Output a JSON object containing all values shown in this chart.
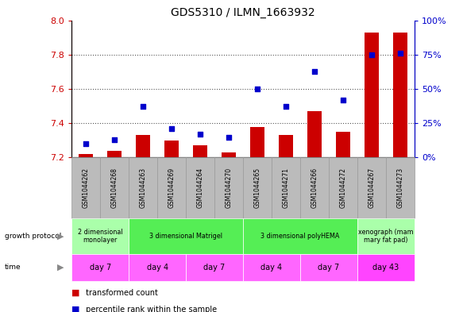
{
  "title": "GDS5310 / ILMN_1663932",
  "samples": [
    "GSM1044262",
    "GSM1044268",
    "GSM1044263",
    "GSM1044269",
    "GSM1044264",
    "GSM1044270",
    "GSM1044265",
    "GSM1044271",
    "GSM1044266",
    "GSM1044272",
    "GSM1044267",
    "GSM1044273"
  ],
  "transformed_counts": [
    7.22,
    7.24,
    7.33,
    7.3,
    7.27,
    7.23,
    7.38,
    7.33,
    7.47,
    7.35,
    7.93,
    7.93
  ],
  "percentile_ranks": [
    10,
    13,
    37,
    21,
    17,
    15,
    50,
    37,
    63,
    42,
    75,
    76
  ],
  "ylim_left": [
    7.2,
    8.0
  ],
  "ylim_right": [
    0,
    100
  ],
  "yticks_left": [
    7.2,
    7.4,
    7.6,
    7.8,
    8.0
  ],
  "yticks_right": [
    0,
    25,
    50,
    75,
    100
  ],
  "bar_color": "#cc0000",
  "dot_color": "#0000cc",
  "bar_bottom": 7.2,
  "growth_protocol_groups": [
    {
      "label": "2 dimensional\nmonolayer",
      "start": 0,
      "end": 2,
      "color": "#aaffaa"
    },
    {
      "label": "3 dimensional Matrigel",
      "start": 2,
      "end": 6,
      "color": "#55ee55"
    },
    {
      "label": "3 dimensional polyHEMA",
      "start": 6,
      "end": 10,
      "color": "#55ee55"
    },
    {
      "label": "xenograph (mam\nmary fat pad)",
      "start": 10,
      "end": 12,
      "color": "#aaffaa"
    }
  ],
  "time_groups": [
    {
      "label": "day 7",
      "start": 0,
      "end": 2,
      "color": "#ff66ff"
    },
    {
      "label": "day 4",
      "start": 2,
      "end": 4,
      "color": "#ff66ff"
    },
    {
      "label": "day 7",
      "start": 4,
      "end": 6,
      "color": "#ff66ff"
    },
    {
      "label": "day 4",
      "start": 6,
      "end": 8,
      "color": "#ff66ff"
    },
    {
      "label": "day 7",
      "start": 8,
      "end": 10,
      "color": "#ff66ff"
    },
    {
      "label": "day 43",
      "start": 10,
      "end": 12,
      "color": "#ff44ff"
    }
  ],
  "left_label_color": "#cc0000",
  "right_label_color": "#0000cc",
  "sample_bg_color": "#bbbbbb",
  "sample_border_color": "#999999"
}
